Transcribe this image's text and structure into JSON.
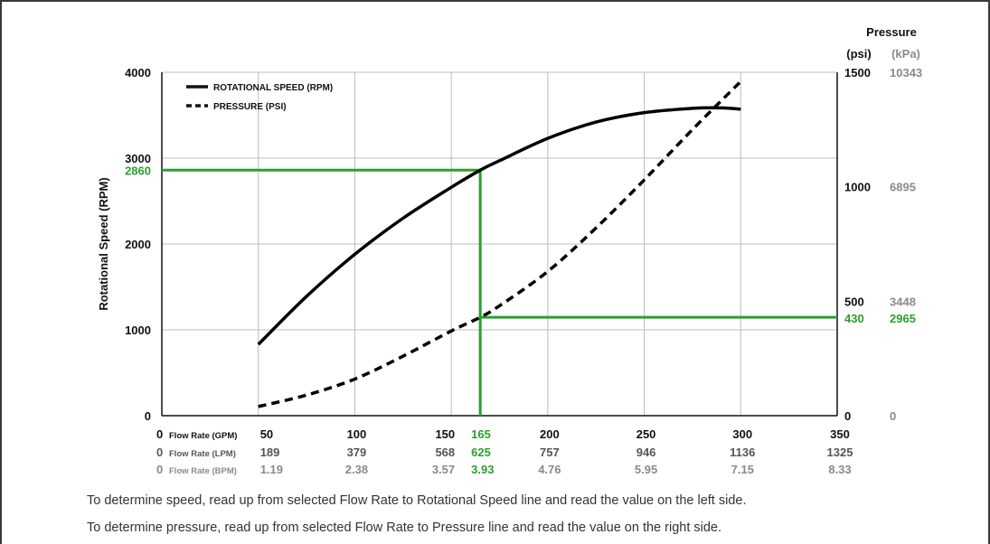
{
  "chart_data": {
    "type": "line",
    "ylabel": "Rotational Speed (RPM)",
    "y2_title": "Pressure",
    "y2_unit_psi": "(psi)",
    "y2_unit_kpa": "(kPa)",
    "xlim": [
      0,
      350
    ],
    "ylim": [
      0,
      4000
    ],
    "y2lim": [
      0,
      1500
    ],
    "grid": true,
    "legend_position": "top-left",
    "x_ticks": [
      0,
      50,
      100,
      150,
      200,
      250,
      300,
      350
    ],
    "x_rows": [
      {
        "label": "Flow Rate (GPM)",
        "zero": "0",
        "values": [
          "50",
          "100",
          "150",
          "200",
          "250",
          "300",
          "350"
        ],
        "highlight": "165"
      },
      {
        "label": "Flow Rate (LPM)",
        "zero": "0",
        "values": [
          "189",
          "379",
          "568",
          "757",
          "946",
          "1136",
          "1325"
        ],
        "highlight": "625"
      },
      {
        "label": "Flow Rate (BPM)",
        "zero": "0",
        "values": [
          "1.19",
          "2.38",
          "3.57",
          "4.76",
          "5.95",
          "7.15",
          "8.33"
        ],
        "highlight": "3.93"
      }
    ],
    "y_ticks": [
      "0",
      "1000",
      "2000",
      "3000",
      "4000"
    ],
    "y2_ticks": [
      {
        "value": 0,
        "psi": "0",
        "kpa": "0"
      },
      {
        "value": 500,
        "psi": "500",
        "kpa": "3448"
      },
      {
        "value": 1000,
        "psi": "1000",
        "kpa": "6895"
      },
      {
        "value": 1500,
        "psi": "1500",
        "kpa": "10343"
      }
    ],
    "series": [
      {
        "name": "ROTATIONAL SPEED (RPM)",
        "axis": "left",
        "style": "solid",
        "color": "#000000",
        "x": [
          50,
          75,
          100,
          125,
          150,
          165,
          175,
          200,
          225,
          250,
          275,
          290,
          300
        ],
        "y": [
          830,
          1390,
          1880,
          2300,
          2660,
          2860,
          2970,
          3230,
          3420,
          3530,
          3580,
          3585,
          3570
        ]
      },
      {
        "name": "PRESSURE (PSI)",
        "axis": "right",
        "style": "dashed",
        "color": "#000000",
        "x": [
          50,
          75,
          100,
          125,
          150,
          165,
          175,
          200,
          225,
          250,
          275,
          300
        ],
        "y": [
          40,
          90,
          160,
          260,
          370,
          430,
          480,
          630,
          820,
          1030,
          1250,
          1460
        ]
      }
    ],
    "highlight": {
      "color": "#2aa02a",
      "flow_gpm": 165,
      "speed_rpm": 2860,
      "speed_label": "2860",
      "pressure_psi": 430,
      "pressure_psi_label": "430",
      "pressure_kpa_label": "2965"
    }
  },
  "notes": {
    "line1": "To determine speed, read up from selected Flow Rate to Rotational Speed line and read the value on the left side.",
    "line2": "To determine pressure, read up from selected Flow Rate to Pressure line and read the value on the right side."
  }
}
